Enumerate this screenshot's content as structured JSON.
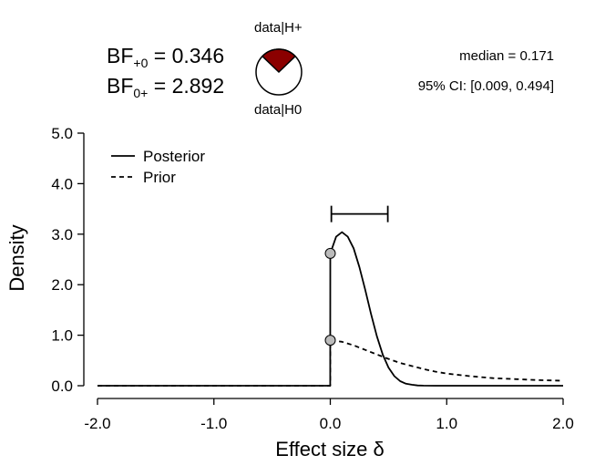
{
  "header": {
    "bf_plus0": {
      "prefix": "BF",
      "sub": "+0",
      "value": "= 0.346"
    },
    "bf_0plus": {
      "prefix": "BF",
      "sub": "0+",
      "value": "= 2.892"
    },
    "pie": {
      "top_label": "data|H+",
      "bottom_label": "data|H0",
      "fraction_h_plus": 0.257,
      "color_h_plus": "#8b0000",
      "color_h0": "#ffffff"
    },
    "median_text": "median = 0.171",
    "ci_text": "95% CI: [0.009, 0.494]"
  },
  "chart_data": {
    "type": "line",
    "xlabel": "Effect size δ",
    "ylabel": "Density",
    "xlim": [
      -2,
      2
    ],
    "ylim": [
      0,
      5
    ],
    "x_ticks": [
      "-2.0",
      "-1.0",
      "0.0",
      "1.0",
      "2.0"
    ],
    "y_ticks": [
      "0.0",
      "1.0",
      "2.0",
      "3.0",
      "4.0",
      "5.0"
    ],
    "legend_position": "top-left",
    "series": [
      {
        "name": "Posterior",
        "style": "solid",
        "x": [
          -2.0,
          -0.001,
          0.0,
          0.05,
          0.1,
          0.15,
          0.2,
          0.25,
          0.3,
          0.35,
          0.4,
          0.45,
          0.5,
          0.55,
          0.6,
          0.65,
          0.7,
          0.75,
          0.8,
          0.9,
          1.0,
          1.5,
          2.0
        ],
        "y": [
          0.0,
          0.0,
          2.62,
          2.95,
          3.04,
          2.95,
          2.72,
          2.35,
          1.9,
          1.42,
          0.98,
          0.62,
          0.36,
          0.19,
          0.09,
          0.04,
          0.02,
          0.005,
          0.002,
          0.0,
          0.0,
          0.0,
          0.0
        ]
      },
      {
        "name": "Prior",
        "style": "dashed",
        "x": [
          -2.0,
          -0.001,
          0.0,
          0.1,
          0.2,
          0.3,
          0.4,
          0.5,
          0.6,
          0.7,
          0.8,
          0.9,
          1.0,
          1.2,
          1.4,
          1.6,
          1.8,
          2.0
        ],
        "y": [
          0.0,
          0.0,
          0.9,
          0.87,
          0.8,
          0.71,
          0.62,
          0.53,
          0.45,
          0.39,
          0.33,
          0.28,
          0.24,
          0.19,
          0.15,
          0.13,
          0.11,
          0.1
        ]
      }
    ],
    "points": [
      {
        "x": 0.0,
        "y": 2.62,
        "color": "#bbbbbb"
      },
      {
        "x": 0.0,
        "y": 0.9,
        "color": "#bbbbbb"
      }
    ],
    "credible_interval": {
      "low": 0.009,
      "high": 0.494,
      "y": 3.4
    }
  }
}
